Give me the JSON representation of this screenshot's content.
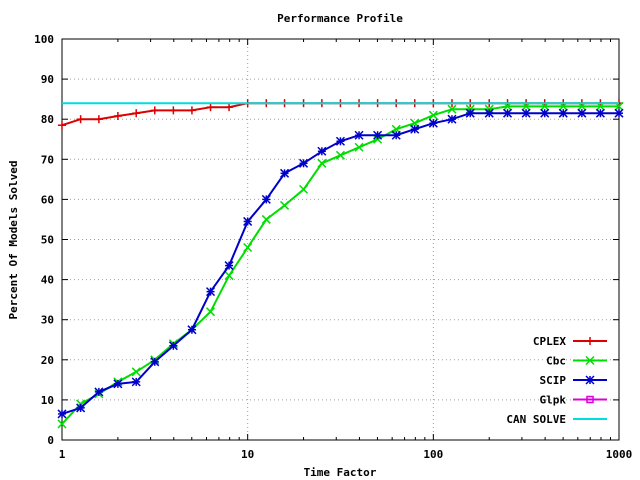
{
  "chart_data": {
    "type": "line",
    "title": "Performance Profile",
    "xlabel": "Time Factor",
    "ylabel": "Percent Of Models Solved",
    "xscale": "log",
    "xlim": [
      1,
      1000
    ],
    "ylim": [
      0,
      100
    ],
    "xticks": [
      1,
      10,
      100,
      1000
    ],
    "yticks": [
      0,
      10,
      20,
      30,
      40,
      50,
      60,
      70,
      80,
      90,
      100
    ],
    "grid": true,
    "legend_position": "bottom-right",
    "series": [
      {
        "name": "CPLEX",
        "color": "#dd0000",
        "marker": "plus",
        "x": [
          1,
          1.26,
          1.58,
          2.0,
          2.51,
          3.16,
          3.98,
          5.01,
          6.31,
          7.94,
          10,
          12.6,
          15.8,
          20,
          25.1,
          31.6,
          39.8,
          50.1,
          63.1,
          79.4,
          100,
          126,
          158,
          200,
          251,
          316,
          398,
          501,
          631,
          794,
          1000
        ],
        "y": [
          78.5,
          80,
          80,
          80.8,
          81.5,
          82.2,
          82.2,
          82.2,
          83,
          83,
          84,
          84,
          84,
          84,
          84,
          84,
          84,
          84,
          84,
          84,
          84,
          84,
          84,
          84,
          84,
          84,
          84,
          84,
          84,
          84,
          84
        ]
      },
      {
        "name": "Cbc",
        "color": "#00dd00",
        "marker": "x",
        "x": [
          1,
          1.26,
          1.58,
          2.0,
          2.51,
          3.16,
          3.98,
          5.01,
          6.31,
          7.94,
          10,
          12.6,
          15.8,
          20,
          25.1,
          31.6,
          39.8,
          50.1,
          63.1,
          79.4,
          100,
          126,
          158,
          200,
          251,
          316,
          398,
          501,
          631,
          794,
          1000
        ],
        "y": [
          4,
          9,
          11.5,
          14.5,
          17,
          20,
          24,
          27.5,
          32,
          41,
          48,
          55,
          58.5,
          62.5,
          69,
          71,
          73,
          75,
          77.5,
          79,
          81,
          82.5,
          82.5,
          82.5,
          83.2,
          83.2,
          83.2,
          83.2,
          83.2,
          83.2,
          83.2
        ]
      },
      {
        "name": "SCIP",
        "color": "#0000cc",
        "marker": "star",
        "x": [
          1,
          1.26,
          1.58,
          2.0,
          2.51,
          3.16,
          3.98,
          5.01,
          6.31,
          7.94,
          10,
          12.6,
          15.8,
          20,
          25.1,
          31.6,
          39.8,
          50.1,
          63.1,
          79.4,
          100,
          126,
          158,
          200,
          251,
          316,
          398,
          501,
          631,
          794,
          1000
        ],
        "y": [
          6.5,
          8,
          12,
          14,
          14.5,
          19.5,
          23.5,
          27.5,
          37,
          43.5,
          54.5,
          60,
          66.5,
          69,
          72,
          74.5,
          76,
          76,
          76,
          77.5,
          79,
          80,
          81.5,
          81.5,
          81.5,
          81.5,
          81.5,
          81.5,
          81.5,
          81.5,
          81.5
        ]
      },
      {
        "name": "Glpk",
        "color": "#dd00dd",
        "marker": "square",
        "x": [],
        "y": []
      },
      {
        "name": "CAN SOLVE",
        "color": "#00dddd",
        "marker": "none",
        "x": [
          1,
          1000
        ],
        "y": [
          84,
          84
        ]
      }
    ]
  }
}
